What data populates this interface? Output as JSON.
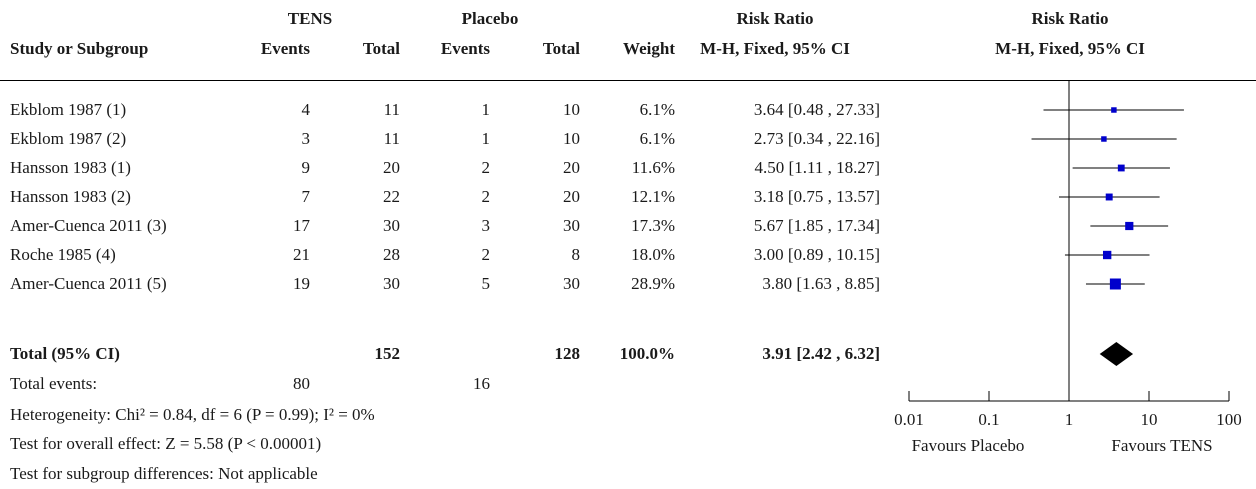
{
  "header": {
    "group_tens": "TENS",
    "group_placebo": "Placebo",
    "rr_title_table": "Risk Ratio",
    "rr_title_plot": "Risk Ratio",
    "col_study": "Study or Subgroup",
    "col_tens_events": "Events",
    "col_tens_total": "Total",
    "col_pl_events": "Events",
    "col_pl_total": "Total",
    "col_weight": "Weight",
    "col_ci_table": "M-H, Fixed, 95% CI",
    "col_ci_plot": "M-H, Fixed, 95% CI"
  },
  "rows": [
    {
      "study": "Ekblom 1987 (1)",
      "te": "4",
      "tt": "11",
      "pe": "1",
      "pt": "10",
      "w": "6.1%",
      "ci": "3.64 [0.48 , 27.33]"
    },
    {
      "study": "Ekblom 1987 (2)",
      "te": "3",
      "tt": "11",
      "pe": "1",
      "pt": "10",
      "w": "6.1%",
      "ci": "2.73 [0.34 , 22.16]"
    },
    {
      "study": "Hansson 1983 (1)",
      "te": "9",
      "tt": "20",
      "pe": "2",
      "pt": "20",
      "w": "11.6%",
      "ci": "4.50 [1.11 , 18.27]"
    },
    {
      "study": "Hansson 1983 (2)",
      "te": "7",
      "tt": "22",
      "pe": "2",
      "pt": "20",
      "w": "12.1%",
      "ci": "3.18 [0.75 , 13.57]"
    },
    {
      "study": "Amer-Cuenca 2011 (3)",
      "te": "17",
      "tt": "30",
      "pe": "3",
      "pt": "30",
      "w": "17.3%",
      "ci": "5.67 [1.85 , 17.34]"
    },
    {
      "study": "Roche 1985 (4)",
      "te": "21",
      "tt": "28",
      "pe": "2",
      "pt": "8",
      "w": "18.0%",
      "ci": "3.00 [0.89 , 10.15]"
    },
    {
      "study": "Amer-Cuenca 2011 (5)",
      "te": "19",
      "tt": "30",
      "pe": "5",
      "pt": "30",
      "w": "28.9%",
      "ci": "3.80 [1.63 , 8.85]"
    }
  ],
  "total": {
    "label": "Total (95% CI)",
    "tt": "152",
    "pt": "128",
    "w": "100.0%",
    "ci": "3.91 [2.42 , 6.32]"
  },
  "footer": {
    "events_label": "Total events:",
    "tens_events": "80",
    "placebo_events": "16",
    "heterogeneity": "Heterogeneity: Chi² = 0.84, df = 6 (P = 0.99); I² = 0%",
    "overall": "Test for overall effect: Z = 5.58 (P < 0.00001)",
    "subgroup": "Test for subgroup differences: Not applicable"
  },
  "chart_data": {
    "type": "scatter",
    "scale": "log",
    "xlim": [
      0.01,
      100
    ],
    "ticks": [
      "0.01",
      "0.1",
      "1",
      "10",
      "100"
    ],
    "tick_values": [
      0.01,
      0.1,
      1,
      10,
      100
    ],
    "favours_left": "Favours Placebo",
    "favours_right": "Favours TENS",
    "points": [
      {
        "rr": 3.64,
        "lo": 0.48,
        "hi": 27.33,
        "weight": 6.1
      },
      {
        "rr": 2.73,
        "lo": 0.34,
        "hi": 22.16,
        "weight": 6.1
      },
      {
        "rr": 4.5,
        "lo": 1.11,
        "hi": 18.27,
        "weight": 11.6
      },
      {
        "rr": 3.18,
        "lo": 0.75,
        "hi": 13.57,
        "weight": 12.1
      },
      {
        "rr": 5.67,
        "lo": 1.85,
        "hi": 17.34,
        "weight": 17.3
      },
      {
        "rr": 3.0,
        "lo": 0.89,
        "hi": 10.15,
        "weight": 18.0
      },
      {
        "rr": 3.8,
        "lo": 1.63,
        "hi": 8.85,
        "weight": 28.9
      }
    ],
    "pooled": {
      "rr": 3.91,
      "lo": 2.42,
      "hi": 6.32
    },
    "colors": {
      "square": "#0000cc",
      "diamond": "#000000",
      "line": "#000000"
    }
  }
}
